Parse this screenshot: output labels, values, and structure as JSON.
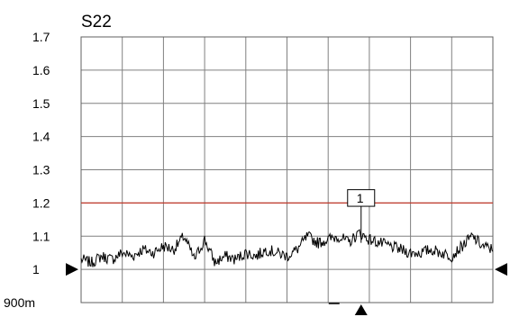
{
  "chart_data": {
    "type": "line",
    "title": "S22",
    "xlabel": "",
    "ylabel": "",
    "ylim": [
      0.9,
      1.7
    ],
    "y_ticks": [
      {
        "value": 1.7,
        "label": "1.7"
      },
      {
        "value": 1.6,
        "label": "1.6"
      },
      {
        "value": 1.5,
        "label": "1.5"
      },
      {
        "value": 1.4,
        "label": "1.4"
      },
      {
        "value": 1.3,
        "label": "1.3"
      },
      {
        "value": 1.2,
        "label": "1.2"
      },
      {
        "value": 1.1,
        "label": "1.1"
      },
      {
        "value": 1.0,
        "label": "1"
      },
      {
        "value": 0.9,
        "label": "900m"
      }
    ],
    "x_divisions": 10,
    "grid": true,
    "limit_line": {
      "value": 1.2,
      "color": "#c0392b"
    },
    "reference_level": 1.0,
    "marker": {
      "label": "1",
      "x": 0.68,
      "y": 1.08
    },
    "series": [
      {
        "color": "#000000",
        "x": [
          0,
          0.025,
          0.05,
          0.075,
          0.1,
          0.125,
          0.15,
          0.175,
          0.2,
          0.225,
          0.25,
          0.275,
          0.3,
          0.325,
          0.35,
          0.375,
          0.4,
          0.425,
          0.45,
          0.475,
          0.5,
          0.525,
          0.55,
          0.575,
          0.6,
          0.625,
          0.65,
          0.675,
          0.7,
          0.725,
          0.75,
          0.775,
          0.8,
          0.825,
          0.85,
          0.875,
          0.9,
          0.925,
          0.95,
          0.975,
          1.0
        ],
        "y": [
          1.03,
          1.02,
          1.04,
          1.03,
          1.05,
          1.04,
          1.06,
          1.05,
          1.07,
          1.06,
          1.1,
          1.03,
          1.09,
          1.02,
          1.04,
          1.03,
          1.05,
          1.04,
          1.06,
          1.05,
          1.04,
          1.06,
          1.1,
          1.08,
          1.09,
          1.1,
          1.08,
          1.11,
          1.09,
          1.08,
          1.07,
          1.06,
          1.05,
          1.05,
          1.06,
          1.05,
          1.04,
          1.07,
          1.1,
          1.07,
          1.06
        ]
      }
    ]
  }
}
